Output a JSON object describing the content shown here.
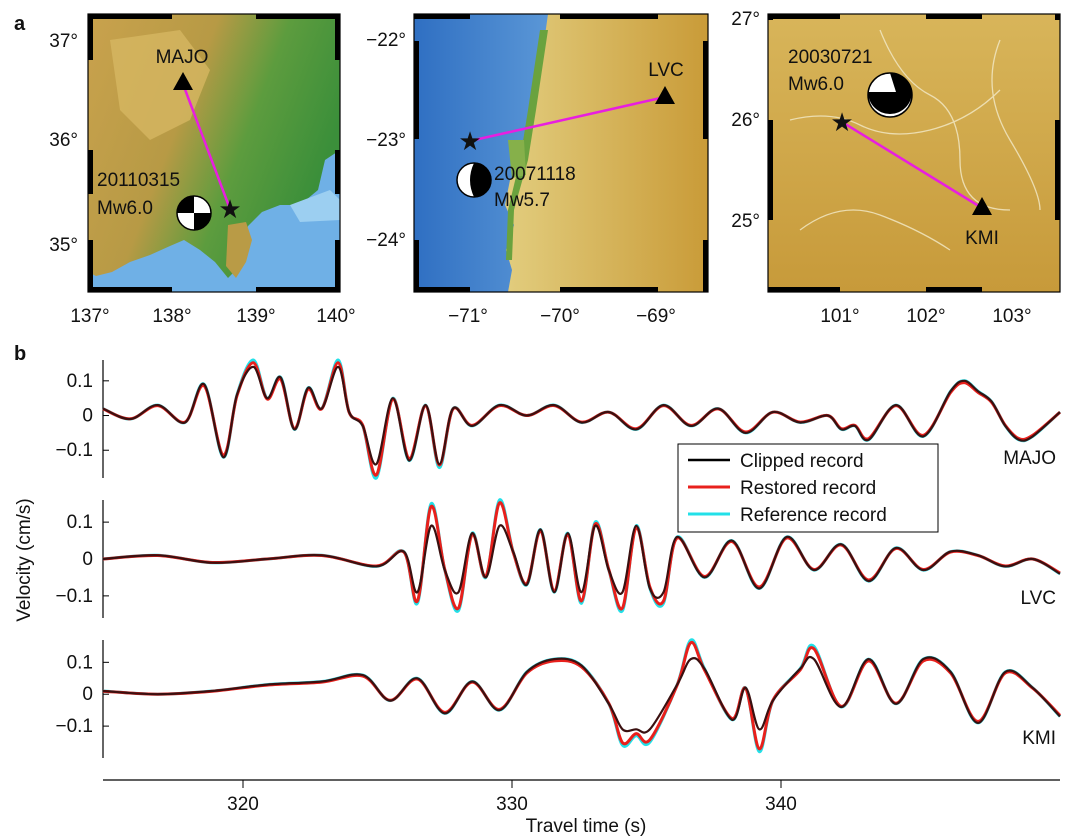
{
  "panel_letters": [
    "a",
    "b"
  ],
  "maps": [
    {
      "x_ticks": [
        "137°",
        "138°",
        "139°",
        "140°"
      ],
      "y_ticks": [
        "37°",
        "36°",
        "35°"
      ],
      "station": "MAJO",
      "event_date": "20110315",
      "event_mag": "Mw6.0"
    },
    {
      "x_ticks": [
        "−71°",
        "−70°",
        "−69°"
      ],
      "y_ticks": [
        "−22°",
        "−23°",
        "−24°"
      ],
      "station": "LVC",
      "event_date": "20071118",
      "event_mag": "Mw5.7"
    },
    {
      "x_ticks": [
        "101°",
        "102°",
        "103°"
      ],
      "y_ticks": [
        "27°",
        "26°",
        "25°"
      ],
      "station": "KMI",
      "event_date": "20030721",
      "event_mag": "Mw6.0"
    }
  ],
  "colors": {
    "clipped": "#000000",
    "restored": "#e8201c",
    "reference": "#22e0e8",
    "path": "#e81ee0",
    "ocean": "#4c8fd6",
    "lowland": "#3f9a3c",
    "highland": "#d8b45a"
  },
  "chart_data": {
    "type": "line",
    "xlabel": "Travel time (s)",
    "ylabel": "Velocity (cm/s)",
    "xlim": [
      315,
      350
    ],
    "x_ticks": [
      "320",
      "330",
      "340"
    ],
    "y_ticks": [
      "0.1",
      "0",
      "−0.1"
    ],
    "legend": {
      "placement": "right of center",
      "entries": [
        "Clipped record",
        "Restored record",
        "Reference record"
      ]
    },
    "traces": [
      {
        "station": "MAJO",
        "ylim": [
          -0.18,
          0.16
        ],
        "clip": 0.14,
        "t": [
          315,
          316,
          317,
          318,
          318.7,
          319.4,
          319.9,
          320.5,
          321,
          321.5,
          322,
          322.5,
          323,
          323.6,
          324,
          324.5,
          325,
          325.6,
          326.2,
          326.8,
          327.3,
          327.8,
          328.5,
          329.5,
          330.5,
          331.5,
          332.5,
          333.5,
          334.5,
          335.5,
          336.5,
          337.5,
          338.5,
          339.5,
          340.5,
          341.5,
          342,
          342.5,
          343,
          344,
          345,
          346,
          346.5,
          347,
          347.5,
          348,
          348.5,
          349,
          350
        ],
        "v": [
          0.02,
          -0.01,
          0.03,
          -0.02,
          0.09,
          -0.12,
          0.06,
          0.16,
          0.05,
          0.11,
          -0.04,
          0.08,
          0.02,
          0.16,
          0.01,
          -0.03,
          -0.18,
          0.05,
          -0.13,
          0.03,
          -0.15,
          0.02,
          -0.03,
          0.03,
          0.0,
          0.03,
          -0.02,
          0.01,
          -0.04,
          0.03,
          -0.03,
          0.02,
          -0.05,
          0.01,
          -0.02,
          0.0,
          -0.04,
          -0.03,
          -0.07,
          0.03,
          -0.06,
          0.07,
          0.1,
          0.07,
          0.04,
          -0.03,
          -0.07,
          -0.06,
          0.01
        ]
      },
      {
        "station": "LVC",
        "ylim": [
          -0.16,
          0.16
        ],
        "clip": 0.09,
        "t": [
          315,
          317,
          319,
          321,
          323,
          325,
          326,
          326.5,
          327,
          327.5,
          328,
          328.5,
          329,
          329.5,
          330,
          330.5,
          331,
          331.5,
          332,
          332.5,
          333,
          333.5,
          334,
          334.5,
          335,
          335.5,
          336,
          337,
          338,
          339,
          340,
          341,
          342,
          343,
          344,
          345,
          346,
          347,
          348,
          349,
          350
        ],
        "v": [
          0.0,
          0.01,
          -0.01,
          0.0,
          0.01,
          -0.02,
          0.02,
          -0.12,
          0.15,
          -0.03,
          -0.14,
          0.07,
          -0.05,
          0.16,
          0.02,
          -0.07,
          0.08,
          -0.09,
          0.07,
          -0.12,
          0.1,
          -0.03,
          -0.14,
          0.09,
          -0.08,
          -0.12,
          0.06,
          -0.05,
          0.05,
          -0.08,
          0.06,
          -0.03,
          0.04,
          -0.06,
          0.03,
          -0.03,
          0.02,
          0.01,
          -0.02,
          0.0,
          -0.04
        ]
      },
      {
        "station": "KMI",
        "ylim": [
          -0.2,
          0.17
        ],
        "clip": 0.11,
        "t": [
          315,
          317,
          319,
          321,
          323,
          324.5,
          325.5,
          326.5,
          327.5,
          328.5,
          329.5,
          330.5,
          331.5,
          332.5,
          333.5,
          334,
          334.5,
          335,
          336,
          336.5,
          337,
          338,
          338.5,
          339,
          339.5,
          340.5,
          341,
          342,
          343,
          344,
          345,
          346,
          347,
          348,
          349,
          350
        ],
        "v": [
          0.01,
          0.0,
          0.01,
          0.03,
          0.04,
          0.06,
          -0.02,
          0.05,
          -0.06,
          0.04,
          -0.05,
          0.07,
          0.11,
          0.09,
          -0.03,
          -0.16,
          -0.13,
          -0.15,
          0.03,
          0.17,
          0.08,
          -0.08,
          0.02,
          -0.18,
          -0.02,
          0.08,
          0.15,
          -0.04,
          0.11,
          -0.03,
          0.11,
          0.07,
          -0.09,
          0.07,
          0.02,
          -0.07
        ]
      }
    ]
  }
}
